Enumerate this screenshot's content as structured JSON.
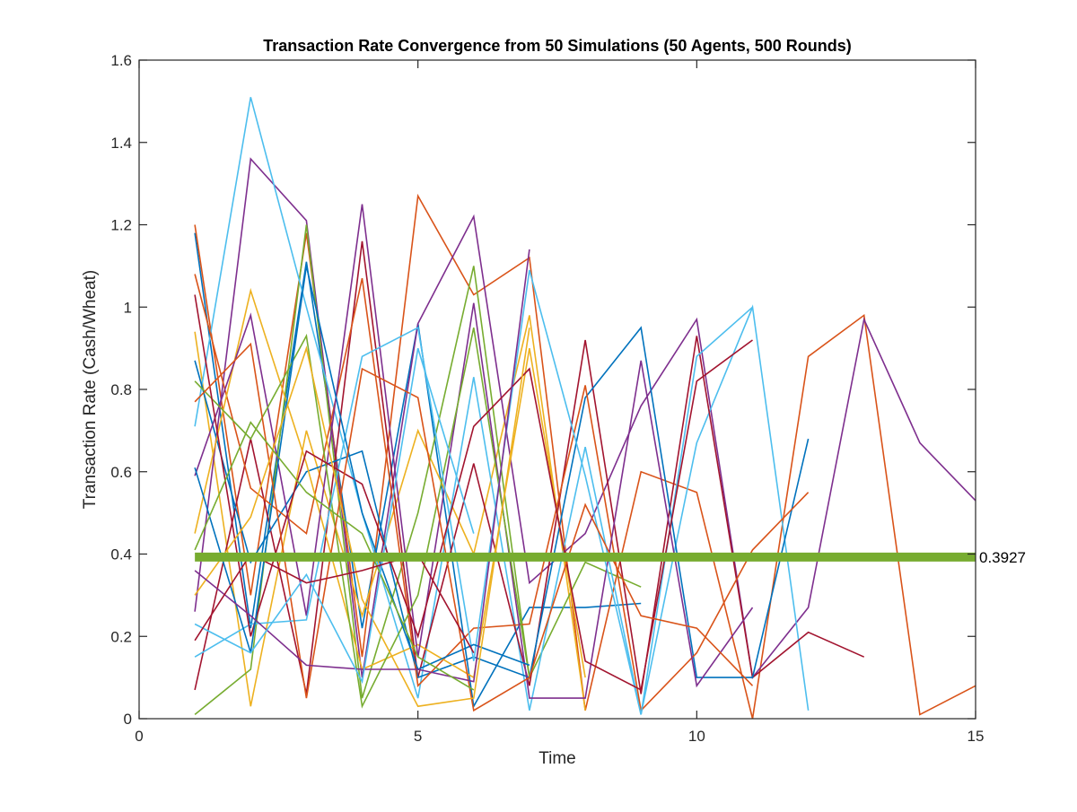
{
  "chart_data": {
    "type": "line",
    "title": "Transaction Rate Convergence from 50 Simulations (50 Agents, 500 Rounds)",
    "xlabel": "Time",
    "ylabel": "Transaction Rate (Cash/Wheat)",
    "xlim": [
      0,
      15
    ],
    "ylim": [
      0,
      1.6
    ],
    "xticks": [
      0,
      5,
      10,
      15
    ],
    "yticks": [
      0,
      0.2,
      0.4,
      0.6,
      0.8,
      1,
      1.2,
      1.4,
      1.6
    ],
    "grid": false,
    "legend": "none",
    "palette": [
      "#0072BD",
      "#D95319",
      "#EDB120",
      "#7E2F8E",
      "#77AC30",
      "#4DBEEE",
      "#A2142F"
    ],
    "reference_line": {
      "y": 0.3927,
      "label": "0.3927",
      "color": "#77AC30"
    },
    "series": [
      {
        "x": [
          1,
          2,
          3,
          4,
          5,
          6,
          7,
          8,
          9
        ],
        "values": [
          1.18,
          0.22,
          1.11,
          0.22,
          0.96,
          0.03,
          0.27,
          0.27,
          0.28
        ],
        "color": "#0072BD"
      },
      {
        "x": [
          1,
          2,
          3,
          4,
          5,
          6,
          7,
          8,
          9,
          10,
          11,
          12,
          13,
          14,
          15
        ],
        "values": [
          1.2,
          0.3,
          1.18,
          0.15,
          1.27,
          1.03,
          1.12,
          0.02,
          0.6,
          0.55,
          0.0,
          0.88,
          0.98,
          0.01,
          0.08
        ],
        "color": "#D95319"
      },
      {
        "x": [
          1,
          2,
          3,
          4,
          5,
          6,
          7,
          8
        ],
        "values": [
          0.94,
          0.03,
          0.7,
          0.25,
          0.7,
          0.4,
          0.98,
          0.02
        ],
        "color": "#EDB120"
      },
      {
        "x": [
          1,
          2,
          3,
          4,
          5,
          6,
          7,
          8,
          9,
          10,
          11,
          12,
          13,
          14,
          15
        ],
        "values": [
          0.26,
          1.36,
          1.21,
          0.1,
          0.96,
          1.22,
          0.33,
          0.45,
          0.76,
          0.97,
          0.1,
          0.27,
          0.97,
          0.67,
          0.53
        ],
        "color": "#7E2F8E"
      },
      {
        "x": [
          1,
          2,
          3,
          4,
          5,
          6,
          7,
          8,
          9
        ],
        "values": [
          0.01,
          0.12,
          1.2,
          0.05,
          0.5,
          1.1,
          0.1,
          0.38,
          0.32
        ],
        "color": "#77AC30"
      },
      {
        "x": [
          1,
          2,
          3,
          4,
          5,
          6,
          7,
          8,
          9,
          10,
          11,
          12
        ],
        "values": [
          0.71,
          1.51,
          1.0,
          0.5,
          0.05,
          0.83,
          0.02,
          0.66,
          0.01,
          0.67,
          1.0,
          0.02
        ],
        "color": "#4DBEEE"
      },
      {
        "x": [
          1,
          2,
          3,
          4,
          5,
          6,
          7,
          8,
          9,
          10,
          11,
          12,
          13
        ],
        "values": [
          0.07,
          0.68,
          0.06,
          1.16,
          0.1,
          0.62,
          0.08,
          0.92,
          0.06,
          0.93,
          0.1,
          0.21,
          0.15
        ],
        "color": "#A2142F"
      },
      {
        "x": [
          1,
          2,
          3,
          4,
          5,
          6,
          7,
          8,
          9,
          10,
          11,
          12
        ],
        "values": [
          0.87,
          0.38,
          0.6,
          0.65,
          0.1,
          0.15,
          0.1,
          0.78,
          0.95,
          0.1,
          0.1,
          0.68
        ],
        "color": "#0072BD"
      },
      {
        "x": [
          1,
          2,
          3,
          4,
          5,
          6,
          7,
          8,
          9,
          10,
          11,
          12
        ],
        "values": [
          1.08,
          0.56,
          0.45,
          1.07,
          0.08,
          0.22,
          0.23,
          0.81,
          0.02,
          0.16,
          0.41,
          0.55
        ],
        "color": "#D95319"
      },
      {
        "x": [
          1,
          2,
          3,
          4,
          5,
          6,
          7,
          8
        ],
        "values": [
          0.45,
          1.04,
          0.62,
          0.12,
          0.18,
          0.1,
          0.9,
          0.1
        ],
        "color": "#EDB120"
      },
      {
        "x": [
          1,
          2,
          3,
          4,
          5,
          6,
          7,
          8,
          9,
          10,
          11
        ],
        "values": [
          0.59,
          0.98,
          0.25,
          1.25,
          0.15,
          1.01,
          0.05,
          0.05,
          0.87,
          0.08,
          0.27
        ],
        "color": "#7E2F8E"
      },
      {
        "x": [
          1,
          2,
          3,
          4,
          5,
          6,
          7
        ],
        "values": [
          0.82,
          0.68,
          0.93,
          0.03,
          0.3,
          0.95,
          0.1
        ],
        "color": "#77AC30"
      },
      {
        "x": [
          1,
          2,
          3,
          4,
          5,
          6,
          7,
          8,
          9,
          10,
          11
        ],
        "values": [
          0.15,
          0.23,
          0.24,
          0.88,
          0.95,
          0.14,
          1.09,
          0.59,
          0.01,
          0.88,
          1.0
        ],
        "color": "#4DBEEE"
      },
      {
        "x": [
          1,
          2,
          3,
          4,
          5,
          6,
          7,
          8,
          9,
          10,
          11
        ],
        "values": [
          1.03,
          0.2,
          0.65,
          0.57,
          0.2,
          0.71,
          0.85,
          0.14,
          0.07,
          0.82,
          0.92
        ],
        "color": "#A2142F"
      },
      {
        "x": [
          1,
          2,
          3,
          4,
          5,
          6,
          7
        ],
        "values": [
          0.61,
          0.16,
          1.1,
          0.5,
          0.12,
          0.18,
          0.13
        ],
        "color": "#0072BD"
      },
      {
        "x": [
          1,
          2,
          3,
          4,
          5,
          6,
          7,
          8,
          9,
          10,
          11
        ],
        "values": [
          0.77,
          0.91,
          0.05,
          0.85,
          0.78,
          0.02,
          0.1,
          0.52,
          0.25,
          0.22,
          0.08
        ],
        "color": "#D95319"
      },
      {
        "x": [
          1,
          2,
          3,
          4,
          5,
          6,
          7
        ],
        "values": [
          0.3,
          0.49,
          0.9,
          0.29,
          0.03,
          0.05,
          0.95
        ],
        "color": "#EDB120"
      },
      {
        "x": [
          1,
          2,
          3,
          4,
          5,
          6,
          7
        ],
        "values": [
          0.36,
          0.25,
          0.13,
          0.12,
          0.12,
          0.09,
          1.14
        ],
        "color": "#7E2F8E"
      },
      {
        "x": [
          1,
          2,
          3,
          4,
          5,
          6
        ],
        "values": [
          0.41,
          0.72,
          0.55,
          0.45,
          0.15,
          0.07
        ],
        "color": "#77AC30"
      },
      {
        "x": [
          1,
          2,
          3,
          4,
          5,
          6
        ],
        "values": [
          0.23,
          0.16,
          0.35,
          0.09,
          0.9,
          0.45
        ],
        "color": "#4DBEEE"
      },
      {
        "x": [
          1,
          2,
          3,
          4,
          5,
          6
        ],
        "values": [
          0.19,
          0.4,
          0.33,
          0.36,
          0.4,
          0.16
        ],
        "color": "#A2142F"
      }
    ]
  }
}
